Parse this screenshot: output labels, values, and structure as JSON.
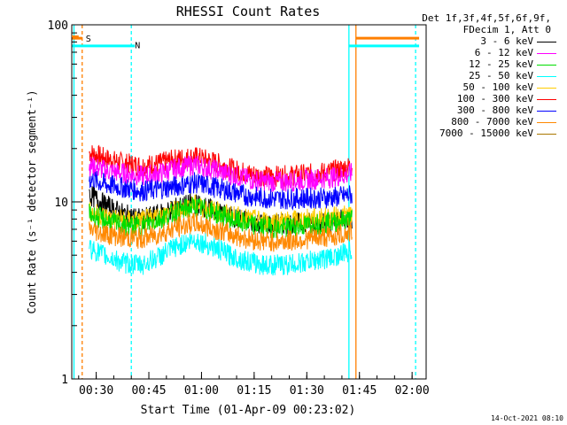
{
  "chart_data": {
    "type": "line",
    "title": "RHESSI Count Rates",
    "xlabel": "Start Time (01-Apr-09 00:23:02)",
    "ylabel": "Count Rate (s⁻¹ detector segment⁻¹)",
    "y_scale": "log",
    "ylim": [
      1,
      100
    ],
    "xlim": [
      "00:23:02",
      "02:04:00"
    ],
    "x_tick_labels": [
      "00:30",
      "00:45",
      "01:00",
      "01:15",
      "01:30",
      "01:45",
      "02:00"
    ],
    "y_tick_labels": [
      "1",
      "10",
      "100"
    ],
    "legend_header": [
      "Det 1f,3f,4f,5f,6f,9f,",
      "FDecim 1, Att 0"
    ],
    "legend_placement": "top-right outside",
    "series": [
      {
        "name": "3 - 6 keV",
        "color": "#000000",
        "x": [
          "00:28",
          "00:33",
          "00:38",
          "00:43",
          "00:48",
          "00:53",
          "00:58",
          "01:03",
          "01:08",
          "01:13",
          "01:18",
          "01:23",
          "01:28",
          "01:33",
          "01:38",
          "01:43"
        ],
        "values": [
          11.0,
          9.5,
          8.5,
          8.0,
          8.5,
          9.3,
          9.8,
          9.0,
          8.3,
          7.8,
          7.5,
          7.5,
          7.6,
          7.7,
          7.8,
          8.0
        ]
      },
      {
        "name": "6 - 12 keV",
        "color": "#ff00ff",
        "x": [
          "00:28",
          "00:33",
          "00:38",
          "00:43",
          "00:48",
          "00:53",
          "00:58",
          "01:03",
          "01:08",
          "01:13",
          "01:18",
          "01:23",
          "01:28",
          "01:33",
          "01:38",
          "01:43"
        ],
        "values": [
          16.0,
          15.0,
          14.5,
          14.0,
          14.5,
          15.5,
          16.2,
          15.3,
          14.3,
          13.5,
          13.0,
          13.0,
          13.2,
          13.5,
          13.8,
          14.5
        ]
      },
      {
        "name": "12 - 25 keV",
        "color": "#00dd00",
        "x": [
          "00:28",
          "00:33",
          "00:38",
          "00:43",
          "00:48",
          "00:53",
          "00:58",
          "01:03",
          "01:08",
          "01:13",
          "01:18",
          "01:23",
          "01:28",
          "01:33",
          "01:38",
          "01:43"
        ],
        "values": [
          8.5,
          7.8,
          7.3,
          7.3,
          8.0,
          8.8,
          9.4,
          8.8,
          8.0,
          7.5,
          7.2,
          7.1,
          7.3,
          7.5,
          7.7,
          8.0
        ]
      },
      {
        "name": "25 - 50 keV",
        "color": "#00ffff",
        "x": [
          "00:28",
          "00:33",
          "00:38",
          "00:43",
          "00:48",
          "00:53",
          "00:58",
          "01:03",
          "01:08",
          "01:13",
          "01:18",
          "01:23",
          "01:28",
          "01:33",
          "01:38",
          "01:43"
        ],
        "values": [
          5.5,
          4.9,
          4.5,
          4.4,
          4.9,
          5.6,
          6.1,
          5.6,
          5.0,
          4.6,
          4.4,
          4.4,
          4.5,
          4.7,
          4.9,
          5.3
        ]
      },
      {
        "name": "50 - 100 keV",
        "color": "#ffcc00",
        "x": [
          "00:28",
          "00:33",
          "00:38",
          "00:43",
          "00:48",
          "00:53",
          "00:58",
          "01:03",
          "01:08",
          "01:13",
          "01:18",
          "01:23",
          "01:28",
          "01:33",
          "01:38",
          "01:43"
        ],
        "values": [
          8.8,
          8.2,
          7.9,
          7.8,
          8.3,
          9.0,
          9.6,
          9.0,
          8.4,
          8.0,
          7.8,
          7.8,
          7.9,
          8.1,
          8.2,
          8.5
        ]
      },
      {
        "name": "100 - 300 keV",
        "color": "#ff0000",
        "x": [
          "00:28",
          "00:33",
          "00:38",
          "00:43",
          "00:48",
          "00:53",
          "00:58",
          "01:03",
          "01:08",
          "01:13",
          "01:18",
          "01:23",
          "01:28",
          "01:33",
          "01:38",
          "01:43"
        ],
        "values": [
          19.0,
          17.5,
          16.5,
          16.0,
          16.5,
          17.5,
          18.0,
          17.0,
          15.5,
          14.5,
          14.0,
          14.0,
          14.2,
          14.5,
          15.0,
          16.0
        ]
      },
      {
        "name": "300 - 800 keV",
        "color": "#0000ff",
        "x": [
          "00:28",
          "00:33",
          "00:38",
          "00:43",
          "00:48",
          "00:53",
          "00:58",
          "01:03",
          "01:08",
          "01:13",
          "01:18",
          "01:23",
          "01:28",
          "01:33",
          "01:38",
          "01:43"
        ],
        "values": [
          13.5,
          12.5,
          12.0,
          11.5,
          11.8,
          12.3,
          12.8,
          12.2,
          11.5,
          10.8,
          10.5,
          10.4,
          10.5,
          10.5,
          10.6,
          11.0
        ]
      },
      {
        "name": "800 - 7000 keV",
        "color": "#ff8800",
        "x": [
          "00:28",
          "00:33",
          "00:38",
          "00:43",
          "00:48",
          "00:53",
          "00:58",
          "01:03",
          "01:08",
          "01:13",
          "01:18",
          "01:23",
          "01:28",
          "01:33",
          "01:38",
          "01:43"
        ],
        "values": [
          7.0,
          6.6,
          6.3,
          6.2,
          6.6,
          7.2,
          7.6,
          7.1,
          6.6,
          6.2,
          6.0,
          6.0,
          6.1,
          6.3,
          6.4,
          6.8
        ]
      },
      {
        "name": "7000 - 15000 keV",
        "color": "#aa7700",
        "x": [],
        "values": []
      }
    ],
    "annotations": [
      {
        "label": "S",
        "color": "#ff7f00",
        "x": "00:25",
        "y": 85
      },
      {
        "label": "N",
        "color": "#00ffff",
        "x": "00:39",
        "y": 78
      }
    ],
    "timestamp": "14-Oct-2021 08:10"
  }
}
